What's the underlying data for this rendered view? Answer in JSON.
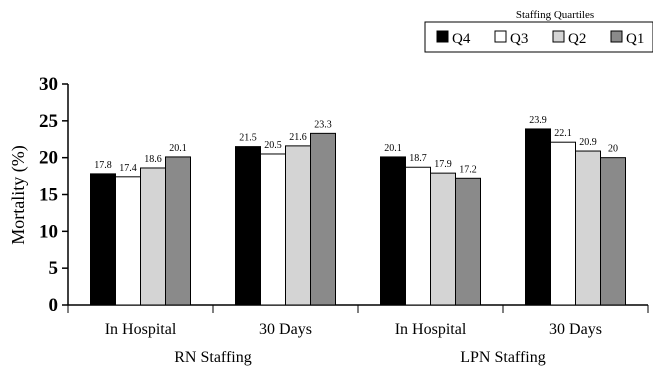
{
  "chart_data": {
    "type": "bar",
    "title": "",
    "xlabel": "",
    "ylabel": "Mortality (%)",
    "ylim": [
      0,
      30
    ],
    "yticks": [
      0,
      5,
      10,
      15,
      20,
      25,
      30
    ],
    "grid": false,
    "legend": {
      "title": "Staffing Quartiles",
      "position": "top-right",
      "entries": [
        "Q4",
        "Q3",
        "Q2",
        "Q1"
      ]
    },
    "categories": [
      "In Hospital",
      "30 Days",
      "In Hospital",
      "30 Days"
    ],
    "groups": [
      {
        "label": "RN Staffing",
        "categories": [
          "In Hospital",
          "30 Days"
        ]
      },
      {
        "label": "LPN Staffing",
        "categories": [
          "In Hospital",
          "30 Days"
        ]
      }
    ],
    "series": [
      {
        "name": "Q4",
        "color": "#000000",
        "values": [
          17.8,
          21.5,
          20.1,
          23.9
        ],
        "labels": [
          "17.8",
          "21.5",
          "20.1",
          "23.9"
        ]
      },
      {
        "name": "Q3",
        "color": "#ffffff",
        "values": [
          17.4,
          20.5,
          18.7,
          22.1
        ],
        "labels": [
          "17.4",
          "20.5",
          "18.7",
          "22.1"
        ]
      },
      {
        "name": "Q2",
        "color": "#d4d4d4",
        "values": [
          18.6,
          21.6,
          17.9,
          20.9
        ],
        "labels": [
          "18.6",
          "21.6",
          "17.9",
          "20.9"
        ]
      },
      {
        "name": "Q1",
        "color": "#8a8a8a",
        "values": [
          20.1,
          23.3,
          17.2,
          20.0
        ],
        "labels": [
          "20.1",
          "23.3",
          "17.2",
          "20"
        ]
      }
    ]
  }
}
